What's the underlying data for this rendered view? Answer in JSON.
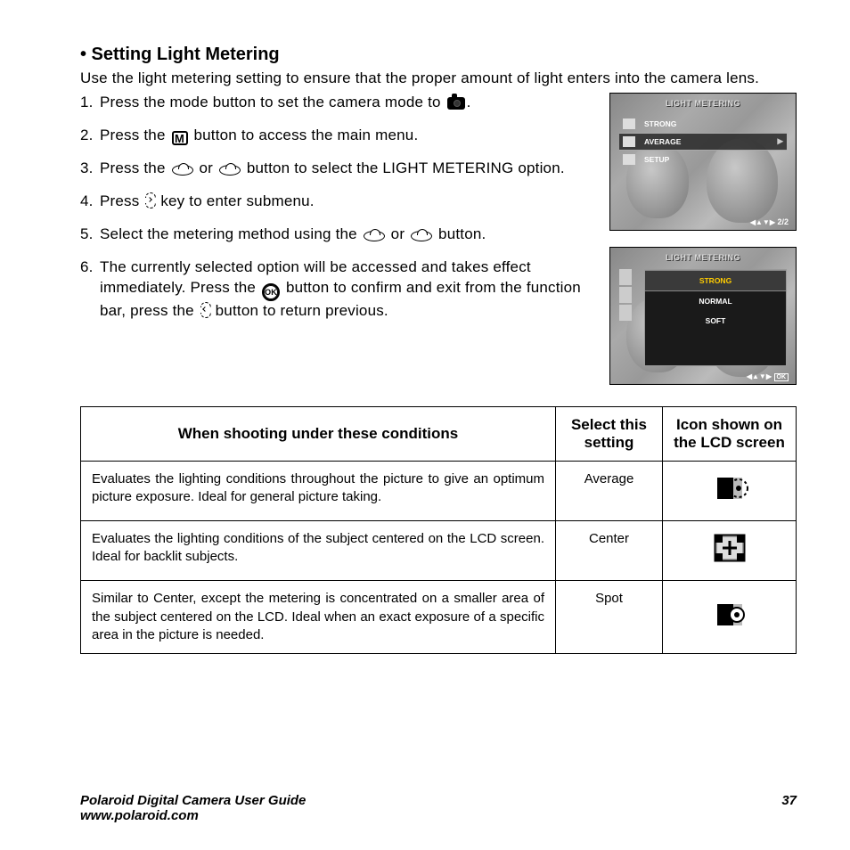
{
  "heading": "• Setting Light Metering",
  "intro": "Use the light metering setting to ensure that the proper amount of light enters into the camera lens.",
  "steps": [
    {
      "num": "1.",
      "pre": "Press the mode button to set the camera mode to ",
      "icon": "camera",
      "post": "."
    },
    {
      "num": "2.",
      "pre": "Press the ",
      "icon": "M",
      "post": " button to access the main menu."
    },
    {
      "num": "3.",
      "pre": "Press the ",
      "icon": "oval",
      "mid": " or ",
      "icon2": "oval",
      "post": " button to select the LIGHT METERING option."
    },
    {
      "num": "4.",
      "pre": "Press ",
      "icon": "right",
      "post": " key to enter submenu."
    },
    {
      "num": "5.",
      "pre": "Select the metering method using the ",
      "icon": "oval",
      "mid": " or ",
      "icon2": "oval",
      "post": " button."
    },
    {
      "num": "6.",
      "pre": "The currently selected option will be accessed and takes effect immediately. Press the ",
      "icon": "ok",
      "mid": " button to confirm and exit from the function bar, press the ",
      "icon2": "left",
      "post": " button to return previous."
    }
  ],
  "lcd1": {
    "title": "LIGHT METERING",
    "rows": [
      {
        "label": "STRONG",
        "selected": false
      },
      {
        "label": "AVERAGE",
        "selected": true
      },
      {
        "label": "SETUP",
        "selected": false
      }
    ],
    "footer": "2/2",
    "footer_arrows": "◀▲▼▶"
  },
  "lcd2": {
    "title": "LIGHT METERING",
    "rows": [
      {
        "label": "STRONG",
        "selected": true
      },
      {
        "label": "NORMAL",
        "selected": false
      },
      {
        "label": "SOFT",
        "selected": false
      }
    ],
    "footer_arrows": "◀▲▼▶",
    "footer_ok": "OK"
  },
  "table": {
    "headers": [
      "When shooting under these conditions",
      "Select this setting",
      "Icon shown on the LCD screen"
    ],
    "col_widths": [
      "auto",
      "120px",
      "150px"
    ],
    "rows": [
      {
        "condition": "Evaluates the lighting conditions throughout the picture to give an optimum picture exposure. Ideal for general picture taking.",
        "setting": "Average",
        "icon": "average"
      },
      {
        "condition": "Evaluates the lighting conditions of the subject centered on the LCD screen. Ideal for backlit subjects.",
        "setting": "Center",
        "icon": "center"
      },
      {
        "condition": "Similar to Center, except the metering is concentrated on a smaller area of the subject centered on the LCD. Ideal when an exact exposure of a specific area in the picture is needed.",
        "setting": "Spot",
        "icon": "spot"
      }
    ]
  },
  "footer": {
    "left_line1": "Polaroid Digital Camera User Guide",
    "left_line2": "www.polaroid.com",
    "page": "37"
  },
  "colors": {
    "text": "#000000",
    "background": "#ffffff",
    "lcd_bg": "#808080",
    "lcd_menu_bg": "#1a1a1a",
    "lcd_selected_text": "#ffcc00",
    "border": "#000000"
  },
  "typography": {
    "heading_fontsize": 20,
    "body_fontsize": 17,
    "table_body_fontsize": 15,
    "table_header_fontsize": 17,
    "lcd_fontsize": 9,
    "footer_fontsize": 15,
    "font_family": "Arial, Helvetica, sans-serif"
  }
}
